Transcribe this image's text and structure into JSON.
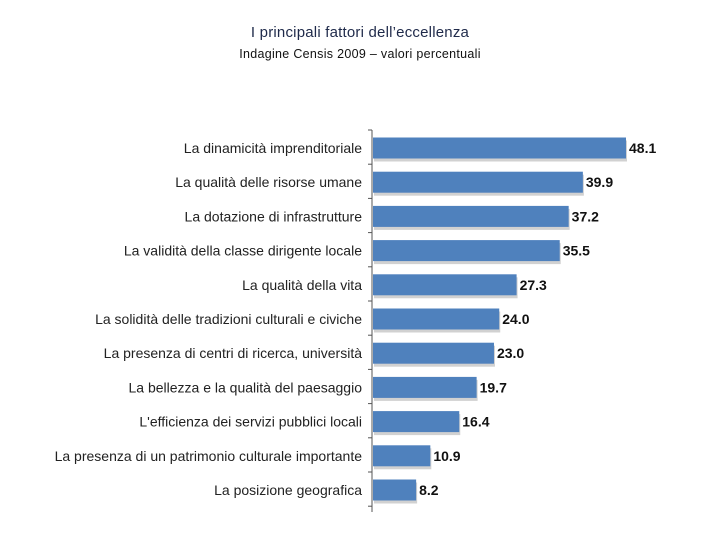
{
  "chart_data": {
    "type": "bar",
    "orientation": "horizontal",
    "title": "I principali fattori dell’eccellenza",
    "subtitle": "Indagine Censis 2009 – valori percentuali",
    "categories": [
      "La dinamicità imprenditoriale",
      "La qualità delle risorse umane",
      "La dotazione di infrastrutture",
      "La validità della classe dirigente locale",
      "La qualità della vita",
      "La solidità delle tradizioni culturali e civiche",
      "La presenza di centri di ricerca, università",
      "La bellezza e la qualità del paesaggio",
      "L'efficienza dei servizi pubblici locali",
      "La presenza di un patrimonio culturale importante",
      "La posizione geografica"
    ],
    "values": [
      48.1,
      39.9,
      37.2,
      35.5,
      27.3,
      24.0,
      23.0,
      19.7,
      16.4,
      10.9,
      8.2
    ],
    "value_labels": [
      "48.1",
      "39.9",
      "37.2",
      "35.5",
      "27.3",
      "24.0",
      "23.0",
      "19.7",
      "16.4",
      "10.9",
      "8.2"
    ],
    "xlim": [
      0,
      50
    ],
    "xlabel": "",
    "ylabel": "",
    "grid": false,
    "bar_color": "#4f81bd"
  }
}
